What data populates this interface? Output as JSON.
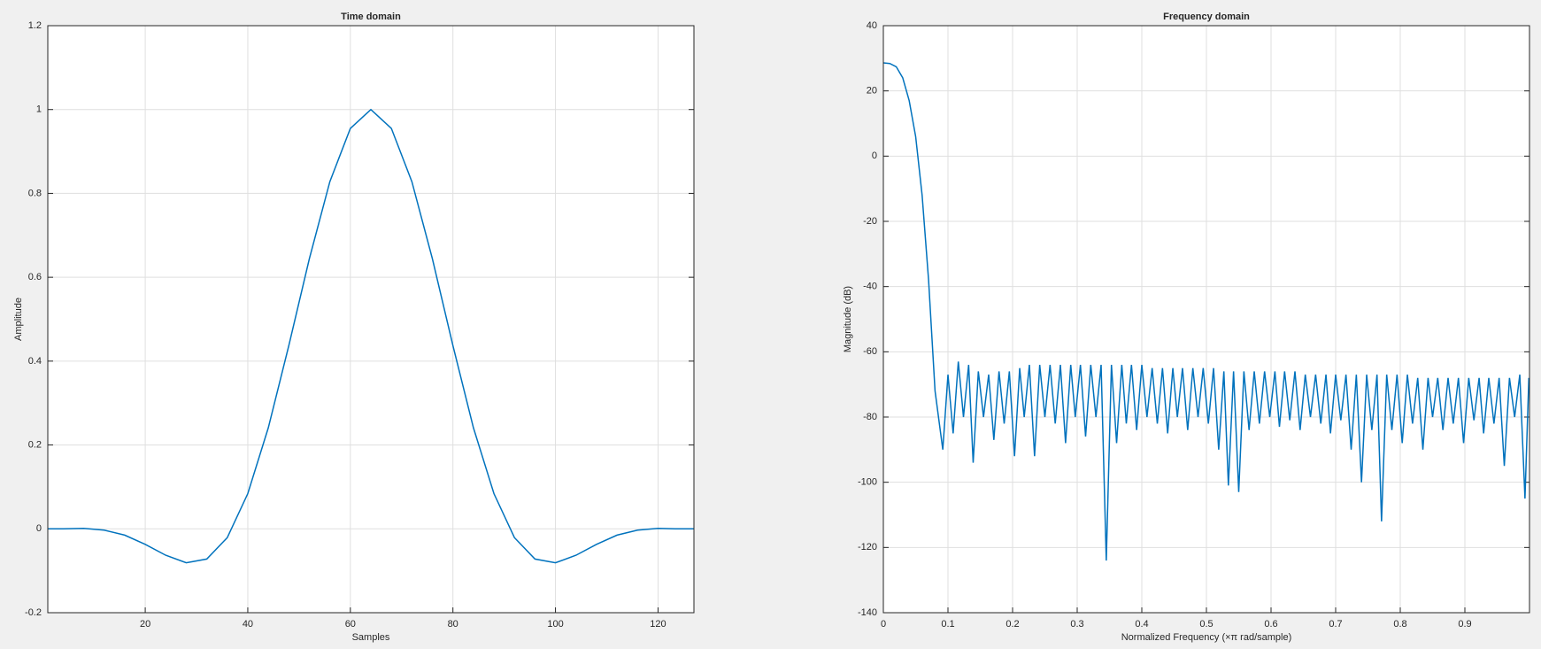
{
  "chart_data": [
    {
      "type": "line",
      "title": "Time domain",
      "xlabel": "Samples",
      "ylabel": "Amplitude",
      "color": "#0072bd",
      "grid": true,
      "x": [
        1,
        4,
        8,
        12,
        16,
        20,
        24,
        28,
        32,
        36,
        40,
        44,
        48,
        52,
        56,
        60,
        64,
        68,
        72,
        76,
        80,
        84,
        88,
        92,
        96,
        100,
        104,
        108,
        112,
        116,
        120,
        124,
        127
      ],
      "values": [
        0,
        0,
        0.001,
        -0.003,
        -0.015,
        -0.037,
        -0.063,
        -0.081,
        -0.072,
        -0.021,
        0.084,
        0.241,
        0.437,
        0.644,
        0.828,
        0.955,
        1,
        0.955,
        0.828,
        0.644,
        0.437,
        0.241,
        0.084,
        -0.021,
        -0.072,
        -0.081,
        -0.063,
        -0.037,
        -0.015,
        -0.003,
        0.001,
        0,
        0
      ],
      "xlim": [
        1,
        127
      ],
      "xticks": [
        20,
        40,
        60,
        80,
        100,
        120
      ],
      "ylim": [
        -0.2,
        1.2
      ],
      "yticks": [
        -0.2,
        0,
        0.2,
        0.4,
        0.6,
        0.8,
        1,
        1.2
      ]
    },
    {
      "type": "line",
      "title": "Frequency domain",
      "xlabel": "Normalized Frequency  (×π rad/sample)",
      "ylabel": "Magnitude (dB)",
      "color": "#0072bd",
      "grid": true,
      "x": [
        0,
        0.01,
        0.02,
        0.03,
        0.04,
        0.05,
        0.06,
        0.07,
        0.08,
        0.092,
        0.1,
        0.108,
        0.116,
        0.124,
        0.132,
        0.139,
        0.147,
        0.155,
        0.163,
        0.171,
        0.179,
        0.187,
        0.195,
        0.203,
        0.211,
        0.218,
        0.226,
        0.234,
        0.242,
        0.25,
        0.258,
        0.266,
        0.274,
        0.282,
        0.29,
        0.297,
        0.305,
        0.313,
        0.321,
        0.329,
        0.337,
        0.345,
        0.353,
        0.361,
        0.369,
        0.376,
        0.384,
        0.392,
        0.4,
        0.408,
        0.416,
        0.424,
        0.432,
        0.44,
        0.448,
        0.455,
        0.463,
        0.471,
        0.479,
        0.487,
        0.495,
        0.503,
        0.511,
        0.519,
        0.527,
        0.534,
        0.542,
        0.55,
        0.558,
        0.566,
        0.574,
        0.582,
        0.59,
        0.598,
        0.606,
        0.613,
        0.621,
        0.629,
        0.637,
        0.645,
        0.653,
        0.661,
        0.669,
        0.677,
        0.685,
        0.692,
        0.7,
        0.708,
        0.716,
        0.724,
        0.732,
        0.74,
        0.748,
        0.756,
        0.764,
        0.771,
        0.779,
        0.787,
        0.795,
        0.803,
        0.811,
        0.819,
        0.827,
        0.835,
        0.843,
        0.85,
        0.858,
        0.866,
        0.874,
        0.882,
        0.89,
        0.898,
        0.906,
        0.914,
        0.922,
        0.929,
        0.937,
        0.945,
        0.953,
        0.961,
        0.969,
        0.977,
        0.985,
        0.993,
        0.999
      ],
      "values": [
        28.6,
        28.4,
        27.4,
        24,
        17,
        6,
        -12,
        -38,
        -72,
        -90,
        -67,
        -85,
        -63,
        -80,
        -64,
        -94,
        -66,
        -80,
        -67,
        -87,
        -66,
        -82,
        -66,
        -92,
        -65,
        -80,
        -64,
        -92,
        -64,
        -80,
        -64,
        -82,
        -64,
        -88,
        -64,
        -80,
        -64,
        -86,
        -64,
        -80,
        -64,
        -124,
        -64,
        -88,
        -64,
        -82,
        -64,
        -84,
        -64,
        -80,
        -65,
        -82,
        -65,
        -85,
        -65,
        -80,
        -65,
        -84,
        -65,
        -80,
        -65,
        -82,
        -65,
        -90,
        -66,
        -101,
        -66,
        -103,
        -66,
        -84,
        -66,
        -82,
        -66,
        -80,
        -66,
        -83,
        -66,
        -81,
        -66,
        -84,
        -67,
        -80,
        -67,
        -82,
        -67,
        -85,
        -67,
        -81,
        -67,
        -90,
        -67,
        -100,
        -67,
        -84,
        -67,
        -112,
        -67,
        -84,
        -67,
        -88,
        -67,
        -82,
        -68,
        -90,
        -68,
        -80,
        -68,
        -84,
        -68,
        -82,
        -68,
        -88,
        -68,
        -81,
        -68,
        -85,
        -68,
        -82,
        -68,
        -95,
        -68,
        -80,
        -67,
        -105,
        -68
      ],
      "xlim": [
        0,
        1
      ],
      "xticks": [
        0,
        0.1,
        0.2,
        0.3,
        0.4,
        0.5,
        0.6,
        0.7,
        0.8,
        0.9
      ],
      "ylim": [
        -140,
        40
      ],
      "yticks": [
        -140,
        -120,
        -100,
        -80,
        -60,
        -40,
        -20,
        0,
        20,
        40
      ]
    }
  ]
}
